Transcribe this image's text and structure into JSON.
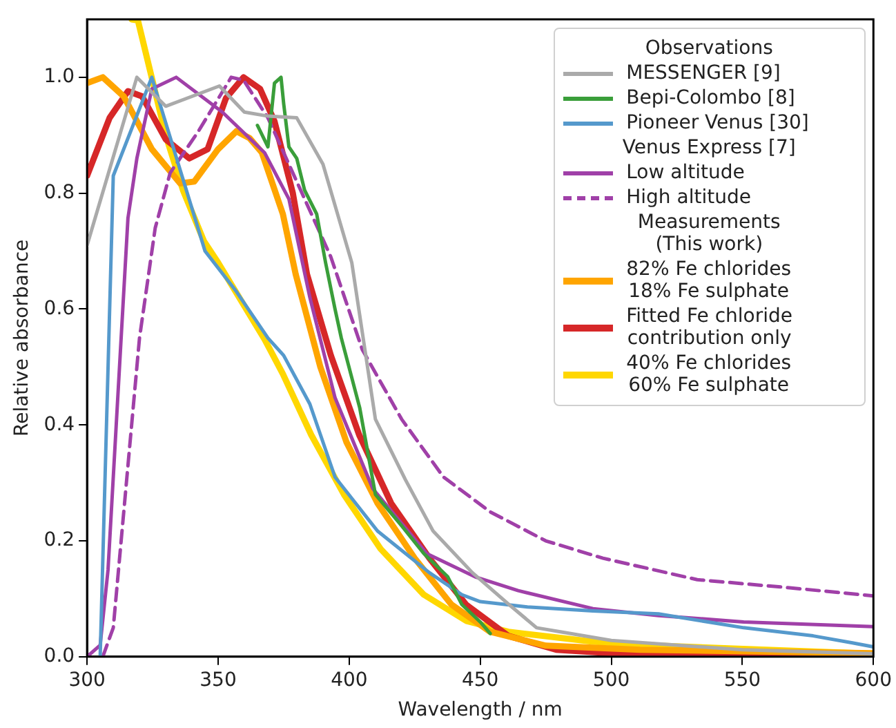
{
  "chart_data": {
    "type": "line",
    "xlabel": "Wavelength / nm",
    "ylabel": "Relative absorbance",
    "legend_title": "Observations",
    "legend": "top right",
    "grid": false,
    "marker": "none",
    "xlim": [
      300,
      600
    ],
    "ylim": [
      0,
      1.1
    ],
    "xticks": [
      300,
      350,
      400,
      450,
      500,
      550,
      600
    ],
    "yticks": [
      {
        "value": 0,
        "label": "0.0"
      },
      {
        "value": 0.2,
        "label": "0.2"
      },
      {
        "value": 0.4,
        "label": "0.4"
      },
      {
        "value": 0.6,
        "label": "0.6"
      },
      {
        "value": 0.8,
        "label": "0.8"
      },
      {
        "value": 1,
        "label": "1.0"
      }
    ],
    "annotations": [
      "Venus Express [7]",
      "Measurements\n(This work)"
    ],
    "series": [
      {
        "name": "MESSENGER [9]",
        "color": "#aaaaaa",
        "line_style": "solid",
        "x": [
          300,
          319,
          330,
          350.5,
          360,
          369,
          380,
          390,
          401,
          410,
          421.5,
          432,
          447,
          461,
          471.5,
          480.6,
          500,
          550,
          600
        ],
        "values": [
          0.71,
          1.0,
          0.95,
          0.985,
          0.94,
          0.933,
          0.93,
          0.85,
          0.68,
          0.41,
          0.305,
          0.217,
          0.145,
          0.09,
          0.05,
          0.043,
          0.028,
          0.012,
          0.005
        ]
      },
      {
        "name": "Bepi-Colombo [8]",
        "color": "#3a9e3a",
        "line_style": "solid",
        "x": [
          365,
          369,
          371.5,
          374,
          375,
          377,
          380,
          383,
          387.6,
          391,
          394.6,
          397,
          404,
          410,
          420,
          428.5,
          437.6,
          443,
          450,
          453.8
        ],
        "values": [
          0.917,
          0.88,
          0.99,
          1.0,
          0.955,
          0.88,
          0.86,
          0.805,
          0.764,
          0.68,
          0.6,
          0.55,
          0.43,
          0.28,
          0.226,
          0.178,
          0.138,
          0.09,
          0.06,
          0.04
        ]
      },
      {
        "name": "Pioneer Venus [30]",
        "color": "#5599cc",
        "line_style": "solid",
        "x": [
          305,
          310,
          324.7,
          345,
          357,
          369,
          375,
          385,
          394.6,
          410.8,
          430.6,
          443,
          450,
          468,
          493,
          518,
          550.5,
          577,
          592,
          600
        ],
        "values": [
          0,
          0.83,
          1.0,
          0.7,
          0.63,
          0.55,
          0.52,
          0.436,
          0.31,
          0.217,
          0.145,
          0.107,
          0.095,
          0.086,
          0.079,
          0.074,
          0.05,
          0.036,
          0.024,
          0.017
        ]
      },
      {
        "name": "Low altitude",
        "color": "#a040a8",
        "line_style": "solid",
        "x": [
          300,
          305,
          308,
          313,
          315.6,
          319,
          324.7,
          334,
          351.6,
          367.7,
          377,
          385,
          394.6,
          409,
          429.6,
          448,
          464.5,
          493,
          518,
          550.5,
          600
        ],
        "values": [
          0,
          0.02,
          0.15,
          0.55,
          0.757,
          0.86,
          0.98,
          1.0,
          0.94,
          0.87,
          0.79,
          0.62,
          0.447,
          0.29,
          0.178,
          0.138,
          0.114,
          0.083,
          0.071,
          0.06,
          0.052
        ]
      },
      {
        "name": "High altitude",
        "color": "#a040a8",
        "line_style": "dashed",
        "x": [
          306,
          310,
          315,
          320,
          326,
          331.7,
          342.5,
          355,
          359.7,
          369,
          384,
          393,
          405,
          420,
          436,
          453.8,
          475,
          496.8,
          532.8,
          568,
          600
        ],
        "values": [
          0,
          0.05,
          0.3,
          0.55,
          0.74,
          0.835,
          0.907,
          1.0,
          0.995,
          0.93,
          0.78,
          0.69,
          0.53,
          0.41,
          0.31,
          0.25,
          0.2,
          0.17,
          0.133,
          0.119,
          0.105
        ]
      },
      {
        "name": "82% Fe chlorides\n18% Fe sulphate",
        "color": "#ffa500",
        "line_style": "solid",
        "x": [
          300,
          306,
          314,
          324.7,
          335.5,
          340.9,
          350,
          357,
          362,
          366.7,
          374.7,
          379.6,
          389,
          399,
          410.8,
          425,
          439,
          453.8,
          475,
          511,
          600
        ],
        "values": [
          0.99,
          1.0,
          0.967,
          0.876,
          0.817,
          0.82,
          0.876,
          0.907,
          0.895,
          0.87,
          0.764,
          0.66,
          0.5,
          0.37,
          0.265,
          0.17,
          0.09,
          0.043,
          0.019,
          0.012,
          0.006
        ]
      },
      {
        "name": "Fitted Fe chloride\ncontribution only",
        "color": "#d62728",
        "line_style": "solid",
        "x": [
          300,
          308.6,
          315.6,
          321,
          330,
          339,
          346,
          353,
          359.7,
          366,
          371.5,
          378.5,
          383.9,
          393,
          403.8,
          416,
          430.6,
          444.6,
          460.7,
          479,
          511,
          600
        ],
        "values": [
          0.83,
          0.93,
          0.976,
          0.967,
          0.893,
          0.86,
          0.876,
          0.964,
          1.0,
          0.98,
          0.924,
          0.8,
          0.66,
          0.52,
          0.383,
          0.265,
          0.17,
          0.09,
          0.036,
          0.012,
          0.003,
          0.001
        ]
      },
      {
        "name": "40% Fe chlorides\n60% Fe sulphate",
        "color": "#ffd700",
        "line_style": "solid",
        "x": [
          317,
          319.4,
          330,
          336.6,
          344.6,
          350,
          367.7,
          374.7,
          385.5,
          398,
          412,
          428.5,
          444.6,
          460.7,
          493,
          518,
          600
        ],
        "values": [
          1.1,
          1.098,
          0.9,
          0.805,
          0.717,
          0.68,
          0.548,
          0.488,
          0.383,
          0.28,
          0.186,
          0.107,
          0.062,
          0.043,
          0.026,
          0.019,
          0.005
        ]
      }
    ]
  }
}
